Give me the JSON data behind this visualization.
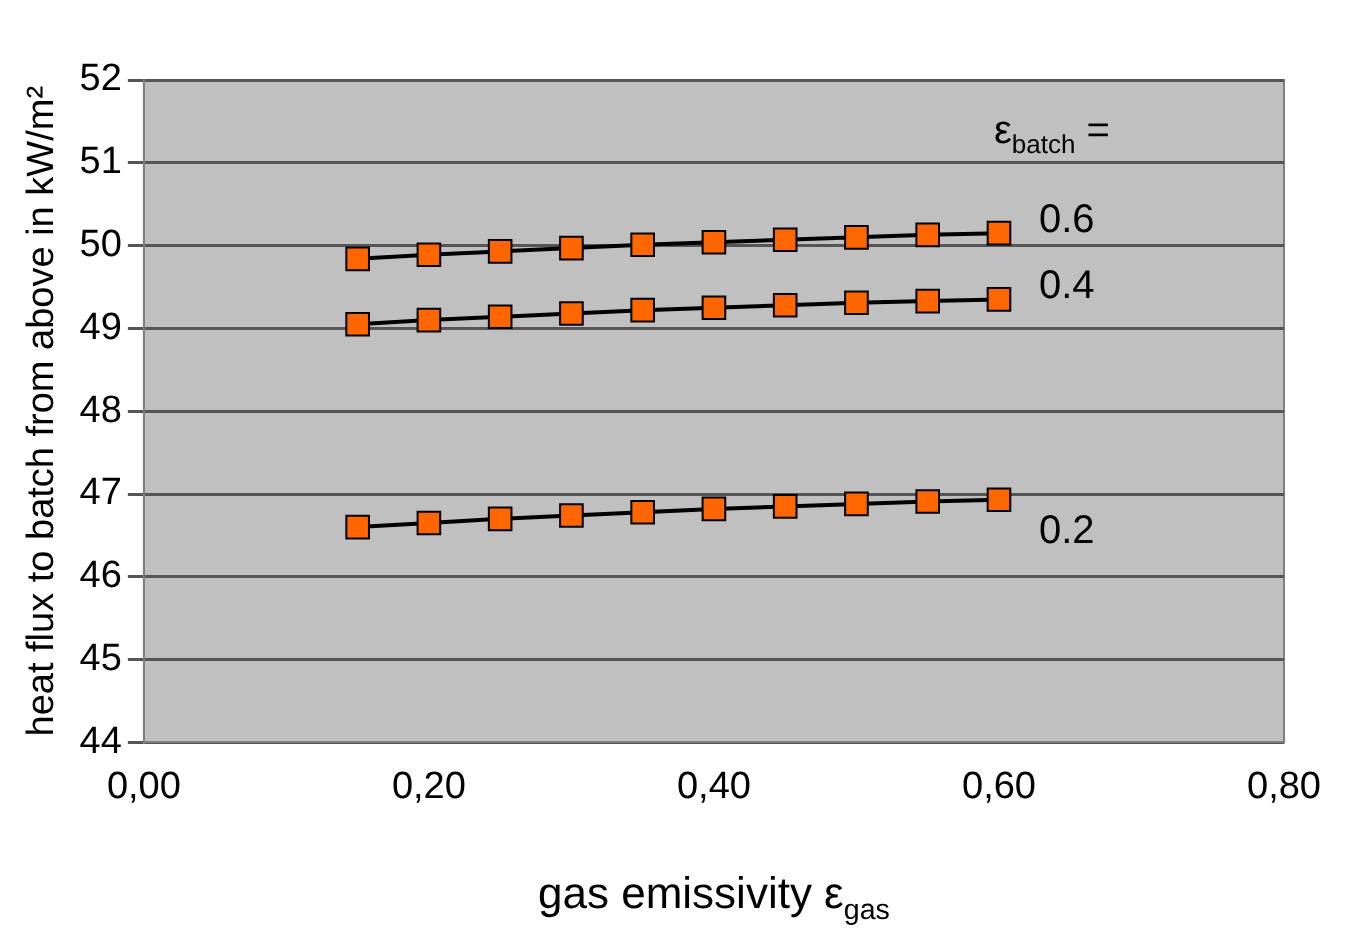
{
  "chart_data": {
    "type": "line",
    "xlabel": "gas emissivity ε$_{gas}$",
    "ylabel": "heat flux to batch from above in kW/m²",
    "legend_title": "ε$_{batch}$ =",
    "x": [
      0.15,
      0.2,
      0.25,
      0.3,
      0.35,
      0.4,
      0.45,
      0.5,
      0.55,
      0.6
    ],
    "series": [
      {
        "name": "0.2",
        "color": "#ff6600",
        "values": [
          46.6,
          46.65,
          46.7,
          46.74,
          46.78,
          46.82,
          46.85,
          46.88,
          46.91,
          46.93
        ]
      },
      {
        "name": "0.4",
        "color": "#ff6600",
        "values": [
          49.05,
          49.1,
          49.14,
          49.18,
          49.22,
          49.25,
          49.28,
          49.31,
          49.33,
          49.35
        ]
      },
      {
        "name": "0.6",
        "color": "#ff6600",
        "values": [
          49.84,
          49.89,
          49.93,
          49.97,
          50.01,
          50.04,
          50.07,
          50.1,
          50.13,
          50.15
        ]
      }
    ],
    "xlim": [
      0,
      0.8
    ],
    "xticks": [
      {
        "value": 0,
        "label": "0,00"
      },
      {
        "value": 0.2,
        "label": "0,20"
      },
      {
        "value": 0.4,
        "label": "0,40"
      },
      {
        "value": 0.6,
        "label": "0,60"
      },
      {
        "value": 0.8,
        "label": "0,80"
      }
    ],
    "ylim": [
      44,
      52
    ],
    "yticks": [
      44,
      45,
      46,
      47,
      48,
      49,
      50,
      51,
      52
    ],
    "grid": "y",
    "marker": "square",
    "line_style": "solid"
  }
}
